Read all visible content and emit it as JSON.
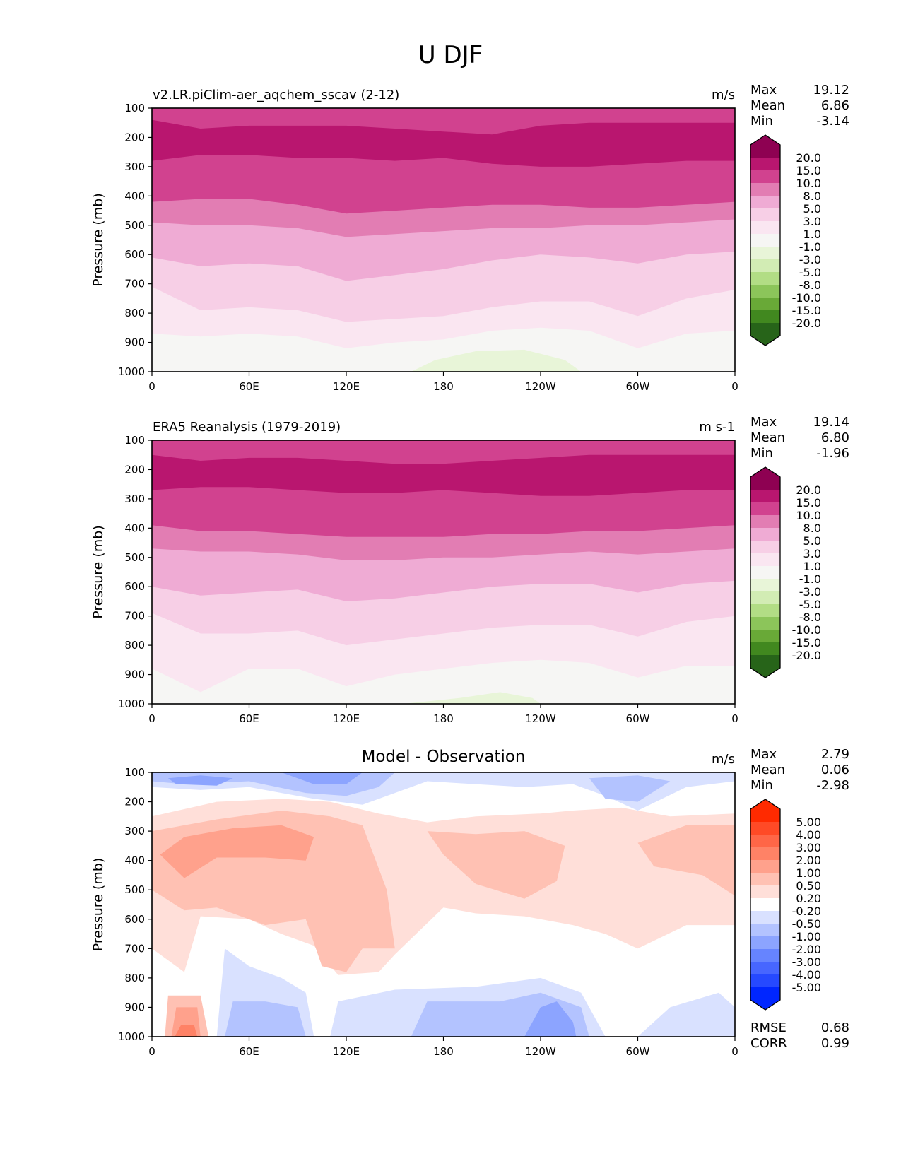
{
  "figure_title": "U DJF",
  "chart_data": [
    {
      "type": "heatmap",
      "subtype": "filled-contour",
      "title": "v2.LR.piClim-aer_aqchem_sscav (2-12)",
      "units": "m/s",
      "xlabel": "",
      "ylabel": "Pressure (mb)",
      "x_ticks": [
        "0",
        "60E",
        "120E",
        "180",
        "120W",
        "60W",
        "0"
      ],
      "y_ticks": [
        "100",
        "200",
        "300",
        "400",
        "500",
        "600",
        "700",
        "800",
        "900",
        "1000"
      ],
      "ylim": [
        1000,
        100
      ],
      "xlim": [
        0,
        360
      ],
      "stats": {
        "Max": "19.12",
        "Mean": "6.86",
        "Min": "-3.14"
      },
      "colorbar": {
        "levels": [
          "20.0",
          "15.0",
          "10.0",
          "8.0",
          "5.0",
          "3.0",
          "1.0",
          "-1.0",
          "-3.0",
          "-5.0",
          "-8.0",
          "-10.0",
          "-15.0",
          "-20.0"
        ],
        "colors": [
          "#8e0152",
          "#b9166f",
          "#d1428f",
          "#e27db3",
          "#efabd4",
          "#f7cfe6",
          "#fae6f1",
          "#f6f6f4",
          "#e8f5d8",
          "#d2ecb4",
          "#b2dd85",
          "#8cc55a",
          "#69a937",
          "#41881f",
          "#276419"
        ],
        "extend": "both"
      },
      "approx_profile": {
        "description": "Zonal-mean-like U wind by longitude and pressure; jet core 15-20 m/s at 150-300 mb, decreasing downward to near 0 at surface, small negative patches near 1000 mb around 150W-90W.",
        "band_boundaries_mb": [
          {
            "level": "15.0",
            "top": [
              140,
              170,
              160,
              160,
              160,
              170,
              180,
              190,
              160,
              150,
              150,
              150,
              150
            ],
            "bottom": [
              280,
              260,
              260,
              270,
              270,
              280,
              270,
              290,
              300,
              300,
              290,
              280,
              280
            ]
          },
          {
            "level": "10.0",
            "bottom": [
              420,
              410,
              410,
              430,
              460,
              450,
              440,
              430,
              430,
              440,
              440,
              430,
              420
            ]
          },
          {
            "level": "8.0",
            "bottom": [
              490,
              500,
              500,
              510,
              540,
              530,
              520,
              510,
              510,
              500,
              500,
              490,
              480
            ]
          },
          {
            "level": "5.0",
            "bottom": [
              610,
              640,
              630,
              640,
              690,
              670,
              650,
              620,
              600,
              610,
              630,
              600,
              590
            ]
          },
          {
            "level": "3.0",
            "bottom": [
              710,
              790,
              780,
              790,
              830,
              820,
              810,
              780,
              760,
              760,
              810,
              750,
              720
            ]
          },
          {
            "level": "1.0",
            "bottom": [
              870,
              880,
              870,
              880,
              920,
              900,
              890,
              860,
              850,
              860,
              920,
              870,
              860
            ]
          }
        ],
        "lon_samples": [
          0,
          30,
          60,
          90,
          120,
          150,
          180,
          210,
          240,
          270,
          300,
          330,
          360
        ]
      }
    },
    {
      "type": "heatmap",
      "subtype": "filled-contour",
      "title": "ERA5 Reanalysis (1979-2019)",
      "units": "m s-1",
      "xlabel": "",
      "ylabel": "Pressure (mb)",
      "x_ticks": [
        "0",
        "60E",
        "120E",
        "180",
        "120W",
        "60W",
        "0"
      ],
      "y_ticks": [
        "100",
        "200",
        "300",
        "400",
        "500",
        "600",
        "700",
        "800",
        "900",
        "1000"
      ],
      "ylim": [
        1000,
        100
      ],
      "xlim": [
        0,
        360
      ],
      "stats": {
        "Max": "19.14",
        "Mean": "6.80",
        "Min": "-1.96"
      },
      "colorbar": {
        "levels": [
          "20.0",
          "15.0",
          "10.0",
          "8.0",
          "5.0",
          "3.0",
          "1.0",
          "-1.0",
          "-3.0",
          "-5.0",
          "-8.0",
          "-10.0",
          "-15.0",
          "-20.0"
        ],
        "colors": [
          "#8e0152",
          "#b9166f",
          "#d1428f",
          "#e27db3",
          "#efabd4",
          "#f7cfe6",
          "#fae6f1",
          "#f6f6f4",
          "#e8f5d8",
          "#d2ecb4",
          "#b2dd85",
          "#8cc55a",
          "#69a937",
          "#41881f",
          "#276419"
        ],
        "extend": "both"
      },
      "approx_profile": {
        "band_boundaries_mb": [
          {
            "level": "15.0",
            "top": [
              150,
              170,
              160,
              160,
              170,
              180,
              180,
              170,
              160,
              150,
              150,
              150,
              150
            ],
            "bottom": [
              270,
              260,
              260,
              270,
              280,
              280,
              270,
              280,
              290,
              290,
              280,
              270,
              270
            ]
          },
          {
            "level": "10.0",
            "bottom": [
              390,
              410,
              410,
              420,
              430,
              430,
              430,
              420,
              420,
              410,
              410,
              400,
              390
            ]
          },
          {
            "level": "8.0",
            "bottom": [
              470,
              480,
              480,
              490,
              510,
              510,
              500,
              500,
              490,
              480,
              490,
              480,
              470
            ]
          },
          {
            "level": "5.0",
            "bottom": [
              600,
              630,
              620,
              610,
              650,
              640,
              620,
              600,
              590,
              590,
              620,
              590,
              580
            ]
          },
          {
            "level": "3.0",
            "bottom": [
              690,
              760,
              760,
              750,
              800,
              780,
              760,
              740,
              730,
              730,
              770,
              720,
              700
            ]
          },
          {
            "level": "1.0",
            "bottom": [
              880,
              960,
              880,
              880,
              940,
              900,
              880,
              860,
              850,
              860,
              910,
              870,
              870
            ]
          }
        ],
        "lon_samples": [
          0,
          30,
          60,
          90,
          120,
          150,
          180,
          210,
          240,
          270,
          300,
          330,
          360
        ]
      }
    },
    {
      "type": "heatmap",
      "subtype": "filled-contour",
      "title": "Model - Observation",
      "units": "m/s",
      "xlabel": "",
      "ylabel": "Pressure (mb)",
      "x_ticks": [
        "0",
        "60E",
        "120E",
        "180",
        "120W",
        "60W",
        "0"
      ],
      "y_ticks": [
        "100",
        "200",
        "300",
        "400",
        "500",
        "600",
        "700",
        "800",
        "900",
        "1000"
      ],
      "ylim": [
        1000,
        100
      ],
      "xlim": [
        0,
        360
      ],
      "stats": {
        "Max": "2.79",
        "Mean": "0.06",
        "Min": "-2.98"
      },
      "extra_stats": {
        "RMSE": "0.68",
        "CORR": "0.99"
      },
      "colorbar": {
        "levels": [
          "5.00",
          "4.00",
          "3.00",
          "2.00",
          "1.00",
          "0.50",
          "0.20",
          "-0.20",
          "-0.50",
          "-1.00",
          "-2.00",
          "-3.00",
          "-4.00",
          "-5.00"
        ],
        "colors": [
          "#ff2a00",
          "#ff4a26",
          "#ff6647",
          "#ff8266",
          "#ffa18c",
          "#ffc1b3",
          "#ffdfd9",
          "#ffffff",
          "#d9e1ff",
          "#b3c3ff",
          "#8ca4ff",
          "#6684ff",
          "#4766ff",
          "#2649ff",
          "#0026ff"
        ],
        "extend": "both"
      }
    }
  ]
}
